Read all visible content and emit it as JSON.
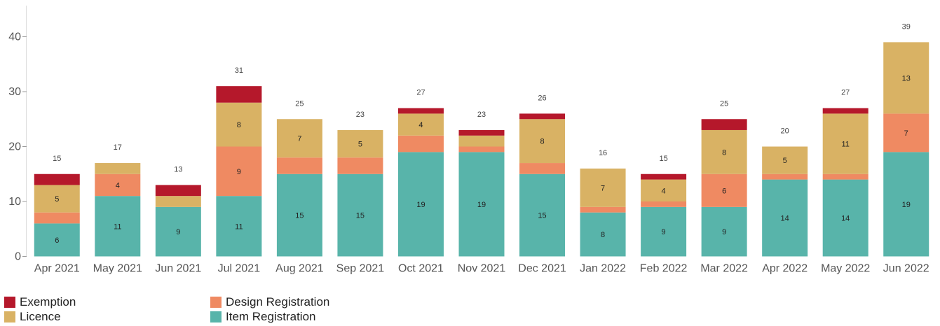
{
  "chart_data": {
    "type": "bar",
    "stacked": true,
    "categories": [
      "Apr 2021",
      "May 2021",
      "Jun 2021",
      "Jul 2021",
      "Aug 2021",
      "Sep 2021",
      "Oct 2021",
      "Nov 2021",
      "Dec 2021",
      "Jan 2022",
      "Feb 2022",
      "Mar 2022",
      "Apr 2022",
      "May 2022",
      "Jun 2022"
    ],
    "series": [
      {
        "name": "Item Registration",
        "color": "#58b4aa",
        "values": [
          6,
          11,
          9,
          11,
          15,
          15,
          19,
          19,
          15,
          8,
          9,
          9,
          14,
          14,
          19
        ]
      },
      {
        "name": "Design Registration",
        "color": "#ef8a62",
        "values": [
          2,
          4,
          0,
          9,
          3,
          3,
          3,
          1,
          2,
          1,
          1,
          6,
          1,
          1,
          7
        ]
      },
      {
        "name": "Licence",
        "color": "#d9b264",
        "values": [
          5,
          2,
          2,
          8,
          7,
          5,
          4,
          2,
          8,
          7,
          4,
          8,
          5,
          11,
          13
        ]
      },
      {
        "name": "Exemption",
        "color": "#b5182b",
        "values": [
          2,
          0,
          2,
          3,
          0,
          0,
          1,
          1,
          1,
          0,
          1,
          2,
          0,
          1,
          0
        ]
      }
    ],
    "totals": [
      15,
      17,
      13,
      31,
      25,
      23,
      27,
      23,
      26,
      16,
      15,
      25,
      20,
      27,
      39
    ],
    "ylim": [
      0,
      43
    ],
    "yticks": [
      0,
      10,
      20,
      30,
      40
    ],
    "grid": false,
    "legend_position": "bottom-left"
  },
  "legend": {
    "items": [
      {
        "label": "Exemption",
        "color": "#b5182b"
      },
      {
        "label": "Design Registration",
        "color": "#ef8a62"
      },
      {
        "label": "Licence",
        "color": "#d9b264"
      },
      {
        "label": "Item Registration",
        "color": "#58b4aa"
      }
    ]
  }
}
